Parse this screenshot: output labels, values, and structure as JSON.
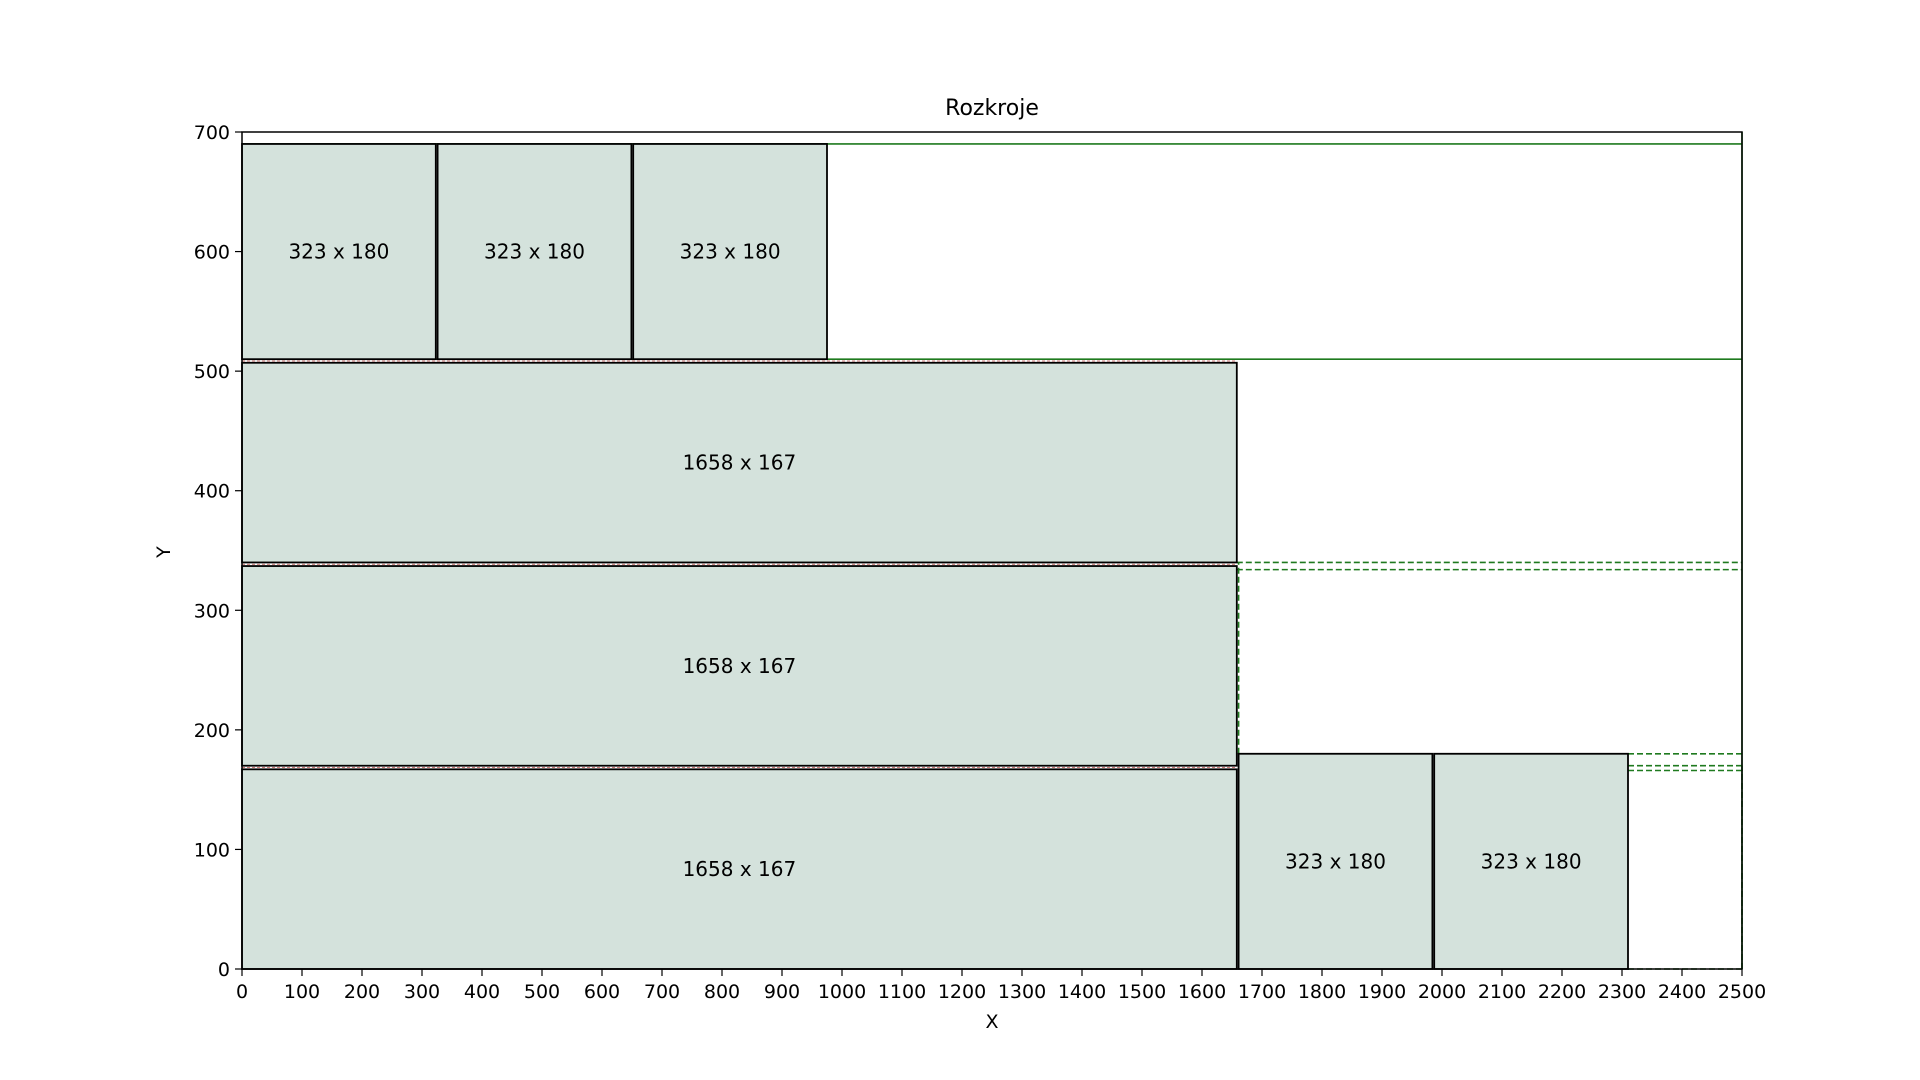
{
  "chart_data": {
    "type": "rectangles",
    "title": "Rozkroje",
    "xlabel": "X",
    "ylabel": "Y",
    "xlim": [
      0,
      2500
    ],
    "ylim": [
      0,
      700
    ],
    "xticks": [
      0,
      100,
      200,
      300,
      400,
      500,
      600,
      700,
      800,
      900,
      1000,
      1100,
      1200,
      1300,
      1400,
      1500,
      1600,
      1700,
      1800,
      1900,
      2000,
      2100,
      2200,
      2300,
      2400,
      2500
    ],
    "yticks": [
      0,
      100,
      200,
      300,
      400,
      500,
      600,
      700
    ],
    "grid": false,
    "colors": {
      "piece_fill": "#d4e2dc",
      "piece_edge": "#000000",
      "cut_line": "#1f7a1f",
      "kerf_line": "#c0504d"
    },
    "pieces": [
      {
        "x": 0,
        "y": 0,
        "w": 1658,
        "h": 167,
        "label": "1658 x 167"
      },
      {
        "x": 0,
        "y": 170,
        "w": 1658,
        "h": 167,
        "label": "1658 x 167"
      },
      {
        "x": 0,
        "y": 340,
        "w": 1658,
        "h": 167,
        "label": "1658 x 167"
      },
      {
        "x": 0,
        "y": 510,
        "w": 323,
        "h": 180,
        "label": "323 x 180"
      },
      {
        "x": 326,
        "y": 510,
        "w": 323,
        "h": 180,
        "label": "323 x 180"
      },
      {
        "x": 652,
        "y": 510,
        "w": 323,
        "h": 180,
        "label": "323 x 180"
      },
      {
        "x": 1661,
        "y": 0,
        "w": 323,
        "h": 180,
        "label": "323 x 180"
      },
      {
        "x": 1987,
        "y": 0,
        "w": 323,
        "h": 180,
        "label": "323 x 180"
      }
    ],
    "solid_cuts": [
      {
        "x1": 0,
        "y1": 690,
        "x2": 2500,
        "y2": 690
      },
      {
        "x1": 0,
        "y1": 510,
        "x2": 2500,
        "y2": 510
      },
      {
        "x1": 2500,
        "y1": 0,
        "x2": 2500,
        "y2": 700
      }
    ],
    "dashed_cuts": [
      {
        "x1": 1658,
        "y1": 340,
        "x2": 2500,
        "y2": 340
      },
      {
        "x1": 1658,
        "y1": 334,
        "x2": 2500,
        "y2": 334
      },
      {
        "x1": 2310,
        "y1": 180,
        "x2": 2500,
        "y2": 180
      },
      {
        "x1": 2310,
        "y1": 170,
        "x2": 2500,
        "y2": 170
      },
      {
        "x1": 2310,
        "y1": 166,
        "x2": 2500,
        "y2": 166
      },
      {
        "x1": 2310,
        "y1": 0,
        "x2": 2500,
        "y2": 0
      },
      {
        "x1": 1661,
        "y1": 180,
        "x2": 1661,
        "y2": 340
      },
      {
        "x1": 2500,
        "y1": 0,
        "x2": 2500,
        "y2": 170
      }
    ],
    "kerf_lines": [
      {
        "x1": 0,
        "y1": 168.5,
        "x2": 1658,
        "y2": 168.5
      },
      {
        "x1": 0,
        "y1": 338.5,
        "x2": 1658,
        "y2": 338.5
      },
      {
        "x1": 0,
        "y1": 508.5,
        "x2": 1658,
        "y2": 508.5
      }
    ]
  }
}
